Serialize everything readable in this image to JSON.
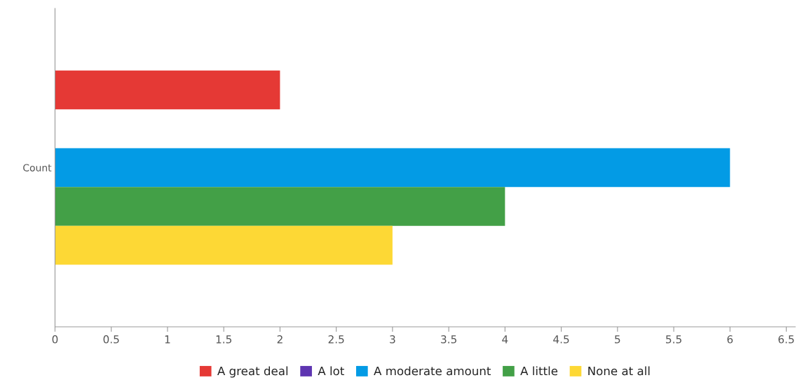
{
  "chart_data": {
    "type": "bar",
    "orientation": "horizontal",
    "categories": [
      "Count"
    ],
    "series": [
      {
        "name": "A great deal",
        "color": "#e53935",
        "values": [
          2
        ]
      },
      {
        "name": "A lot",
        "color": "#5e35b1",
        "values": [
          0
        ]
      },
      {
        "name": "A moderate amount",
        "color": "#039be5",
        "values": [
          6
        ]
      },
      {
        "name": "A little",
        "color": "#43a047",
        "values": [
          4
        ]
      },
      {
        "name": "None at all",
        "color": "#fdd835",
        "values": [
          3
        ]
      }
    ],
    "xlim": [
      0,
      6.58
    ],
    "xticks": [
      0,
      0.5,
      1,
      1.5,
      2,
      2.5,
      3,
      3.5,
      4,
      4.5,
      5,
      5.5,
      6,
      6.5
    ],
    "grid": false,
    "legend": "bottom"
  }
}
